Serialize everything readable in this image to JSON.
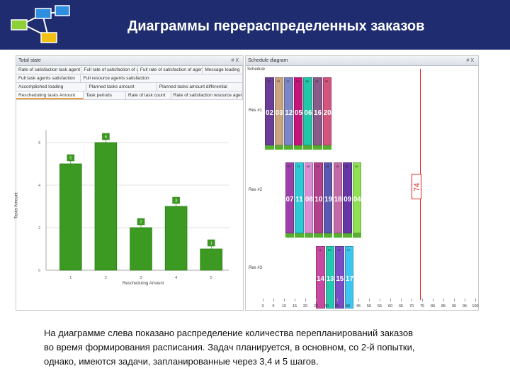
{
  "slide": {
    "title": "Диаграммы перераспределенных заказов",
    "caption_lines": [
      "На диаграмме слева показано распределение количества перепланирований заказов",
      "во время  формирования расписания. Задач планируется, в основном, со 2-й попытки,",
      "однако, имеются задачи, запланированные через 3,4 и 5 шагов."
    ],
    "topbar_color": "#1f2d70"
  },
  "left_panel": {
    "title": "Total state",
    "controls": "# X",
    "tab_rows": [
      [
        "Rate of satisfaction task agent",
        "Full rate of satisfaction of agents",
        "Full rate of satisfaction of agents",
        "Message loading"
      ],
      [
        "Full task agents satisfaction",
        "Full resource agents satisfaction"
      ],
      [
        "Accomplished loading",
        "Planned tasks amount",
        "Planned tasks amount differential"
      ],
      [
        "Rescheduling tasks Amount",
        "Task periods",
        "Rate of task count",
        "Rate of satisfaction resource agent"
      ]
    ],
    "active_tab": "Rescheduling tasks Amount"
  },
  "chart_data": {
    "type": "bar",
    "categories": [
      "1",
      "2",
      "3",
      "4",
      "5"
    ],
    "values": [
      5,
      6,
      2,
      3,
      1
    ],
    "data_labels": [
      "5",
      "6",
      "2",
      "3",
      "1"
    ],
    "xlabel": "Rescheduling Amount",
    "ylabel": "Tasks Amount",
    "ylim": [
      0,
      6.6
    ],
    "yticks": [
      "0",
      "2",
      "4",
      "6"
    ],
    "grid": true,
    "bar_color": "#3c9a22"
  },
  "right_panel": {
    "title": "Schedule diagram",
    "controls": "# X",
    "schedule_header": "Schedule",
    "rows": [
      {
        "label": "Res #1",
        "tasks": [
          {
            "id": "02",
            "color": "#6a3e98"
          },
          {
            "id": "03",
            "color": "#c9a47e"
          },
          {
            "id": "12",
            "color": "#7b86c4"
          },
          {
            "id": "05",
            "color": "#c4167a"
          },
          {
            "id": "06",
            "color": "#21c7a8"
          },
          {
            "id": "16",
            "color": "#8a5a8a"
          },
          {
            "id": "20",
            "color": "#d3557e"
          }
        ]
      },
      {
        "label": "Res #2",
        "tasks": [
          {
            "id": "07",
            "color": "#9d3fa8"
          },
          {
            "id": "11",
            "color": "#2ec8d6"
          },
          {
            "id": "08",
            "color": "#d88dd4"
          },
          {
            "id": "10",
            "color": "#b2418c"
          },
          {
            "id": "19",
            "color": "#5a58b0"
          },
          {
            "id": "18",
            "color": "#c26aa8"
          },
          {
            "id": "09",
            "color": "#6636a4"
          },
          {
            "id": "04",
            "color": "#8fe055"
          }
        ]
      },
      {
        "label": "Res #3",
        "tasks": [
          {
            "id": "14",
            "color": "#c84aa0"
          },
          {
            "id": "13",
            "color": "#25c9b0"
          },
          {
            "id": "15",
            "color": "#7b4cc6"
          },
          {
            "id": "17",
            "color": "#3cc6f0"
          }
        ]
      }
    ],
    "marker_label": "74",
    "marker_color": "#e02020",
    "x_axis": [
      "0",
      "5",
      "10",
      "15",
      "20",
      "25",
      "30",
      "35",
      "40",
      "45",
      "50",
      "55",
      "60",
      "65",
      "70",
      "75",
      "80",
      "85",
      "90",
      "95",
      "100"
    ]
  }
}
